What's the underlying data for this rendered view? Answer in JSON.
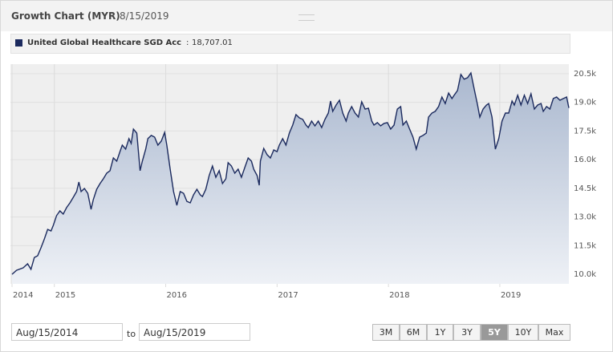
{
  "header": {
    "title": "Growth Chart (MYR)",
    "date": "8/15/2019"
  },
  "chart_data": {
    "type": "area",
    "legend_value": "18,707.01",
    "series": [
      {
        "name": "United Global Healthcare SGD Acc",
        "color": "#1b2a5e",
        "x": [
          2014.62,
          2014.66,
          2014.72,
          2014.76,
          2014.79,
          2014.82,
          2014.85,
          2014.88,
          2014.91,
          2014.94,
          2014.97,
          2014.99,
          2015.02,
          2015.05,
          2015.08,
          2015.11,
          2015.14,
          2015.17,
          2015.2,
          2015.22,
          2015.24,
          2015.27,
          2015.3,
          2015.33,
          2015.35,
          2015.38,
          2015.41,
          2015.44,
          2015.47,
          2015.5,
          2015.53,
          2015.56,
          2015.59,
          2015.61,
          2015.64,
          2015.67,
          2015.69,
          2015.71,
          2015.74,
          2015.77,
          2015.79,
          2015.82,
          2015.84,
          2015.87,
          2015.9,
          2015.93,
          2015.96,
          2015.99,
          2016.01,
          2016.04,
          2016.07,
          2016.1,
          2016.13,
          2016.16,
          2016.19,
          2016.22,
          2016.25,
          2016.28,
          2016.31,
          2016.33,
          2016.36,
          2016.39,
          2016.42,
          2016.45,
          2016.48,
          2016.51,
          2016.54,
          2016.56,
          2016.59,
          2016.62,
          2016.65,
          2016.68,
          2016.71,
          2016.74,
          2016.77,
          2016.79,
          2016.82,
          2016.84,
          2016.85,
          2016.88,
          2016.91,
          2016.94,
          2016.97,
          2017.0,
          2017.02,
          2017.05,
          2017.08,
          2017.11,
          2017.14,
          2017.17,
          2017.2,
          2017.23,
          2017.26,
          2017.28,
          2017.31,
          2017.34,
          2017.37,
          2017.4,
          2017.43,
          2017.46,
          2017.48,
          2017.5,
          2017.53,
          2017.56,
          2017.59,
          2017.62,
          2017.64,
          2017.67,
          2017.7,
          2017.73,
          2017.76,
          2017.79,
          2017.82,
          2017.85,
          2017.87,
          2017.9,
          2017.93,
          2017.96,
          2017.99,
          2018.02,
          2018.05,
          2018.08,
          2018.11,
          2018.13,
          2018.16,
          2018.19,
          2018.22,
          2018.25,
          2018.28,
          2018.31,
          2018.34,
          2018.36,
          2018.39,
          2018.42,
          2018.45,
          2018.48,
          2018.51,
          2018.54,
          2018.57,
          2018.59,
          2018.62,
          2018.65,
          2018.68,
          2018.71,
          2018.74,
          2018.77,
          2018.8,
          2018.82,
          2018.85,
          2018.88,
          2018.9,
          2018.93,
          2018.96,
          2018.99,
          2019.02,
          2019.05,
          2019.08,
          2019.11,
          2019.13,
          2019.16,
          2019.19,
          2019.22,
          2019.25,
          2019.28,
          2019.31,
          2019.34,
          2019.37,
          2019.39,
          2019.42,
          2019.45,
          2019.48,
          2019.51,
          2019.54,
          2019.57,
          2019.6,
          2019.62
        ],
        "values": [
          10000,
          10210,
          10340,
          10550,
          10260,
          10880,
          10970,
          11390,
          11850,
          12350,
          12270,
          12560,
          13070,
          13320,
          13150,
          13490,
          13740,
          14030,
          14330,
          14830,
          14330,
          14490,
          14240,
          13400,
          13910,
          14450,
          14750,
          15000,
          15290,
          15420,
          16090,
          15920,
          16430,
          16760,
          16550,
          17100,
          16850,
          17600,
          17390,
          15420,
          15920,
          16550,
          17100,
          17270,
          17180,
          16760,
          16970,
          17430,
          16760,
          15500,
          14330,
          13610,
          14330,
          14240,
          13820,
          13740,
          14160,
          14450,
          14160,
          14070,
          14450,
          15170,
          15670,
          15080,
          15420,
          14750,
          15000,
          15840,
          15670,
          15290,
          15500,
          15080,
          15590,
          16090,
          15920,
          15500,
          15170,
          14660,
          15920,
          16590,
          16260,
          16090,
          16510,
          16420,
          16760,
          17100,
          16760,
          17390,
          17810,
          18360,
          18190,
          18110,
          17810,
          17680,
          18020,
          17770,
          18020,
          17680,
          18110,
          18440,
          19070,
          18530,
          18860,
          19110,
          18440,
          18020,
          18440,
          18780,
          18440,
          18230,
          19030,
          18650,
          18690,
          18020,
          17810,
          17940,
          17770,
          17900,
          17940,
          17600,
          17810,
          18650,
          18780,
          17810,
          18020,
          17600,
          17180,
          16550,
          17180,
          17270,
          17390,
          18230,
          18440,
          18530,
          18780,
          19280,
          18940,
          19490,
          19200,
          19370,
          19620,
          20460,
          20210,
          20290,
          20540,
          19700,
          18860,
          18230,
          18650,
          18860,
          18940,
          18230,
          16550,
          17100,
          18020,
          18440,
          18440,
          19070,
          18860,
          19370,
          18860,
          19370,
          18940,
          19450,
          18650,
          18860,
          18940,
          18530,
          18780,
          18650,
          19200,
          19280,
          19110,
          19200,
          19280,
          18707.01
        ]
      }
    ],
    "xlim": [
      2014.62,
      2019.62
    ],
    "xticks": [
      {
        "value": 2014.62,
        "label": "2014"
      },
      2015,
      2016,
      2017,
      2018,
      2019
    ],
    "ylim": [
      9500,
      21000
    ],
    "yticks": [
      {
        "value": 10000,
        "label": "10.0k"
      },
      {
        "value": 11500,
        "label": "11.5k"
      },
      {
        "value": 13000,
        "label": "13.0k"
      },
      {
        "value": 14500,
        "label": "14.5k"
      },
      {
        "value": 16000,
        "label": "16.0k"
      },
      {
        "value": 17500,
        "label": "17.5k"
      },
      {
        "value": 19000,
        "label": "19.0k"
      },
      {
        "value": 20500,
        "label": "20.5k"
      }
    ],
    "grid": true
  },
  "controls": {
    "start_date": "Aug/15/2014",
    "to": "to",
    "end_date": "Aug/15/2019",
    "ranges": [
      "3M",
      "6M",
      "1Y",
      "3Y",
      "5Y",
      "10Y",
      "Max"
    ],
    "selected": "5Y"
  }
}
